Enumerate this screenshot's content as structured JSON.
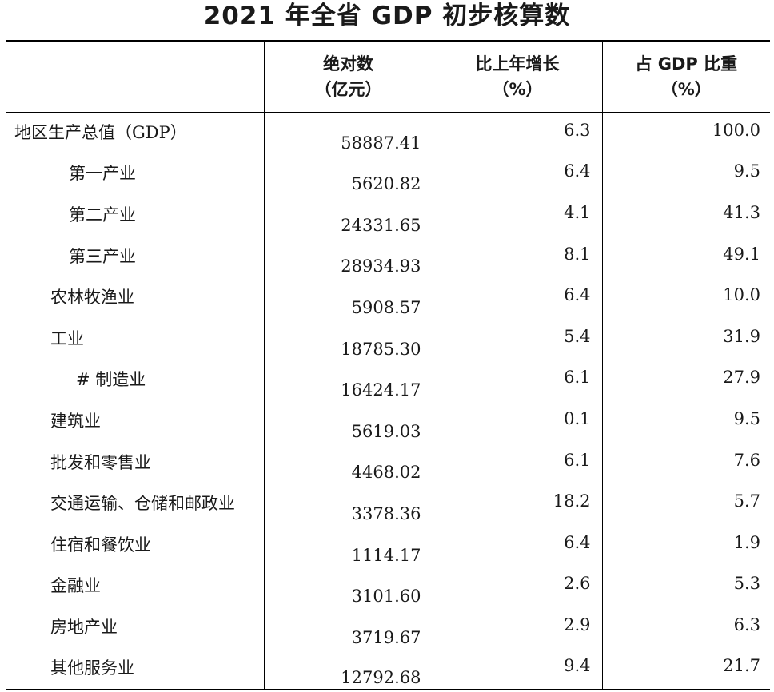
{
  "title": "2021 年全省 GDP 初步核算数",
  "headers": {
    "col0": "",
    "col1_line1": "绝对数",
    "col1_line2": "（亿元）",
    "col2_line1": "比上年增长",
    "col2_line2": "（%）",
    "col3_line1": "占 GDP 比重",
    "col3_line2": "（%）"
  },
  "rows": [
    {
      "name": "地区生产总值（GDP）",
      "indent": 0,
      "abs": "58887.41",
      "growth": "6.3",
      "share": "100.0"
    },
    {
      "name": "第一产业",
      "indent": 2,
      "abs": "5620.82",
      "growth": "6.4",
      "share": "9.5"
    },
    {
      "name": "第二产业",
      "indent": 2,
      "abs": "24331.65",
      "growth": "4.1",
      "share": "41.3"
    },
    {
      "name": "第三产业",
      "indent": 2,
      "abs": "28934.93",
      "growth": "8.1",
      "share": "49.1"
    },
    {
      "name": "农林牧渔业",
      "indent": 1,
      "abs": "5908.57",
      "growth": "6.4",
      "share": "10.0"
    },
    {
      "name": "工业",
      "indent": 1,
      "abs": "18785.30",
      "growth": "5.4",
      "share": "31.9"
    },
    {
      "name": "# 制造业",
      "indent": 3,
      "abs": "16424.17",
      "growth": "6.1",
      "share": "27.9"
    },
    {
      "name": "建筑业",
      "indent": 1,
      "abs": "5619.03",
      "growth": "0.1",
      "share": "9.5"
    },
    {
      "name": "批发和零售业",
      "indent": 1,
      "abs": "4468.02",
      "growth": "6.1",
      "share": "7.6"
    },
    {
      "name": "交通运输、仓储和邮政业",
      "indent": 1,
      "abs": "3378.36",
      "growth": "18.2",
      "share": "5.7"
    },
    {
      "name": "住宿和餐饮业",
      "indent": 1,
      "abs": "1114.17",
      "growth": "6.4",
      "share": "1.9"
    },
    {
      "name": "金融业",
      "indent": 1,
      "abs": "3101.60",
      "growth": "2.6",
      "share": "5.3"
    },
    {
      "name": "房地产业",
      "indent": 1,
      "abs": "3719.67",
      "growth": "2.9",
      "share": "6.3"
    },
    {
      "name": "其他服务业",
      "indent": 1,
      "abs": "12792.68",
      "growth": "9.4",
      "share": "21.7"
    }
  ]
}
